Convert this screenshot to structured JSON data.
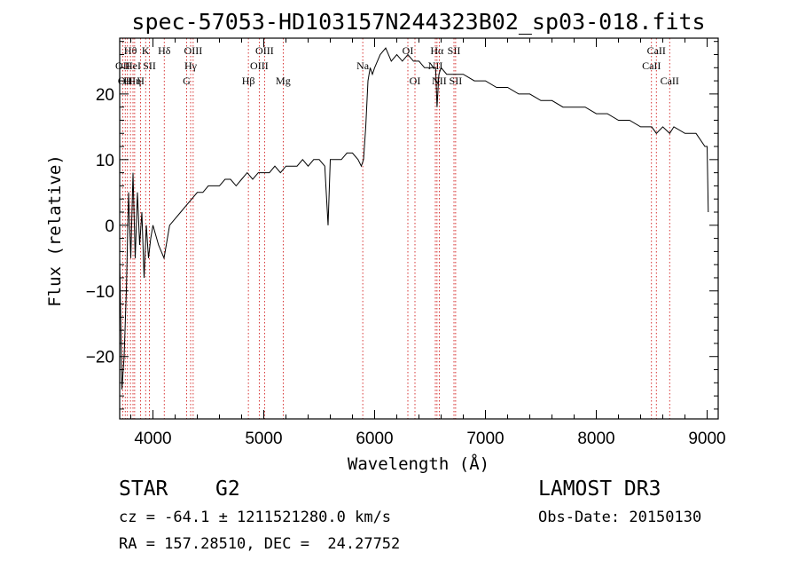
{
  "chart_data": {
    "type": "line",
    "title": "spec-57053-HD103157N244323B02_sp03-018.fits",
    "xlabel": "Wavelength (Å)",
    "ylabel": "Flux (relative)",
    "xlim": [
      3700,
      9100
    ],
    "ylim": [
      -29.5,
      28.5
    ],
    "xticks": [
      4000,
      5000,
      6000,
      7000,
      8000,
      9000
    ],
    "yticks": [
      -20,
      -10,
      0,
      10,
      20
    ],
    "series": [
      {
        "name": "spectrum",
        "x": [
          3700,
          3720,
          3740,
          3760,
          3780,
          3800,
          3820,
          3840,
          3860,
          3880,
          3900,
          3920,
          3940,
          3960,
          3980,
          4000,
          4050,
          4100,
          4150,
          4200,
          4250,
          4300,
          4350,
          4400,
          4450,
          4500,
          4550,
          4600,
          4650,
          4700,
          4750,
          4800,
          4850,
          4900,
          4950,
          5000,
          5050,
          5100,
          5150,
          5200,
          5250,
          5300,
          5350,
          5400,
          5450,
          5500,
          5550,
          5580,
          5600,
          5650,
          5700,
          5750,
          5800,
          5850,
          5880,
          5900,
          5920,
          5940,
          5960,
          5980,
          6000,
          6050,
          6100,
          6150,
          6200,
          6250,
          6300,
          6350,
          6400,
          6450,
          6500,
          6550,
          6563,
          6580,
          6600,
          6650,
          6700,
          6750,
          6800,
          6900,
          7000,
          7100,
          7200,
          7300,
          7400,
          7500,
          7600,
          7700,
          7800,
          7900,
          8000,
          8100,
          8200,
          8300,
          8400,
          8500,
          8542,
          8600,
          8662,
          8700,
          8800,
          8900,
          8980,
          9000,
          9010
        ],
        "y": [
          -5,
          -25,
          -20,
          -10,
          5,
          -5,
          8,
          -5,
          5,
          -3,
          2,
          -8,
          0,
          -5,
          -2,
          0,
          -3,
          -5,
          0,
          1,
          2,
          3,
          4,
          5,
          5,
          6,
          6,
          6,
          7,
          7,
          6,
          7,
          8,
          7,
          8,
          8,
          8,
          9,
          8,
          9,
          9,
          9,
          10,
          9,
          10,
          10,
          9,
          0,
          10,
          10,
          10,
          11,
          11,
          10,
          9,
          10,
          15,
          22,
          24,
          23,
          24,
          26,
          27,
          25,
          26,
          25,
          26,
          25,
          25,
          24,
          24,
          24,
          18,
          23,
          24,
          23,
          23,
          23,
          23,
          22,
          22,
          21,
          21,
          20,
          20,
          19,
          19,
          18,
          18,
          18,
          17,
          17,
          16,
          16,
          15,
          15,
          14,
          15,
          14,
          15,
          14,
          14,
          12,
          12,
          2
        ]
      }
    ],
    "lines": [
      {
        "x": 3727,
        "row": 1,
        "label": "OII"
      },
      {
        "x": 3750,
        "row": 2,
        "label": "OII"
      },
      {
        "x": 3770,
        "row": 2,
        "label": "H"
      },
      {
        "x": 3797,
        "row": 0,
        "label": "Hθ"
      },
      {
        "x": 3820,
        "row": 1,
        "label": "HeI"
      },
      {
        "x": 3835,
        "row": 2,
        "label": "Hη"
      },
      {
        "x": 3889,
        "row": 2,
        "label": "H"
      },
      {
        "x": 3934,
        "row": 0,
        "label": "K"
      },
      {
        "x": 3968,
        "row": 1,
        "label": "SII"
      },
      {
        "x": 4102,
        "row": 0,
        "label": "Hδ"
      },
      {
        "x": 4304,
        "row": 2,
        "label": "G"
      },
      {
        "x": 4340,
        "row": 1,
        "label": "Hγ"
      },
      {
        "x": 4363,
        "row": 0,
        "label": "OIII"
      },
      {
        "x": 4861,
        "row": 2,
        "label": "Hβ"
      },
      {
        "x": 4959,
        "row": 1,
        "label": "OIII"
      },
      {
        "x": 5007,
        "row": 0,
        "label": "OIII"
      },
      {
        "x": 5175,
        "row": 2,
        "label": "Mg"
      },
      {
        "x": 5893,
        "row": 1,
        "label": "Na"
      },
      {
        "x": 6300,
        "row": 0,
        "label": "OI"
      },
      {
        "x": 6364,
        "row": 2,
        "label": "OI"
      },
      {
        "x": 6548,
        "row": 1,
        "label": "NII"
      },
      {
        "x": 6563,
        "row": 0,
        "label": "Hα"
      },
      {
        "x": 6583,
        "row": 2,
        "label": "NII"
      },
      {
        "x": 6716,
        "row": 0,
        "label": "SII"
      },
      {
        "x": 6731,
        "row": 2,
        "label": "SII"
      },
      {
        "x": 8498,
        "row": 1,
        "label": "CaII"
      },
      {
        "x": 8542,
        "row": 0,
        "label": "CaII"
      },
      {
        "x": 8662,
        "row": 2,
        "label": "CaII"
      }
    ]
  },
  "info": {
    "object_class": "STAR",
    "subclass": "G2",
    "survey": "LAMOST DR3",
    "cz": "cz = -64.1 ± 1211521280.0 km/s",
    "obs_date": "Obs-Date: 20150130",
    "coords": "RA = 157.28510, DEC =  24.27752"
  }
}
